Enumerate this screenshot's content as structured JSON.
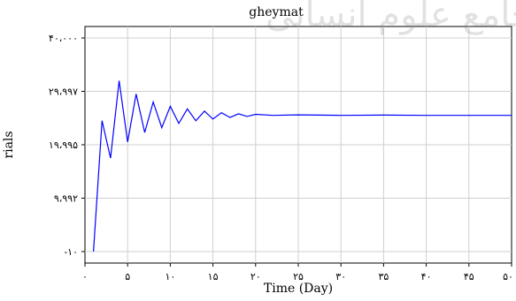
{
  "chart_data": {
    "type": "line",
    "title": "gheymat",
    "xlabel": "Time (Day)",
    "ylabel": "rials",
    "xlim": [
      0,
      50
    ],
    "ylim": [
      -10,
      40000
    ],
    "x_ticks": [
      0,
      5,
      10,
      15,
      20,
      25,
      30,
      35,
      40,
      45,
      50
    ],
    "x_tick_labels": [
      "۰",
      "۵",
      "۱۰",
      "۱۵",
      "۲۰",
      "۲۵",
      "۳۰",
      "۳۵",
      "۴۰",
      "۴۵",
      "۵۰"
    ],
    "y_ticks": [
      -10,
      9992,
      19995,
      29997,
      40000
    ],
    "y_tick_labels": [
      "-۱۰",
      "۹،۹۹۲",
      "۱۹،۹۹۵",
      "۲۹،۹۹۷",
      "۴۰،۰۰۰"
    ],
    "grid": true,
    "series": [
      {
        "color": "#0000ff",
        "x": [
          1,
          2,
          3,
          4,
          5,
          6,
          7,
          8,
          9,
          10,
          11,
          12,
          13,
          14,
          15,
          16,
          17,
          18,
          19,
          20,
          22,
          25,
          30,
          35,
          40,
          45,
          50
        ],
        "y": [
          -10,
          24500,
          17500,
          32000,
          20500,
          29500,
          22300,
          28000,
          23200,
          27200,
          24000,
          26700,
          24500,
          26300,
          24800,
          26000,
          25100,
          25800,
          25300,
          25700,
          25500,
          25600,
          25500,
          25550,
          25500,
          25500,
          25500
        ]
      }
    ]
  },
  "watermark": "پرتال جامع علوم انسانی"
}
